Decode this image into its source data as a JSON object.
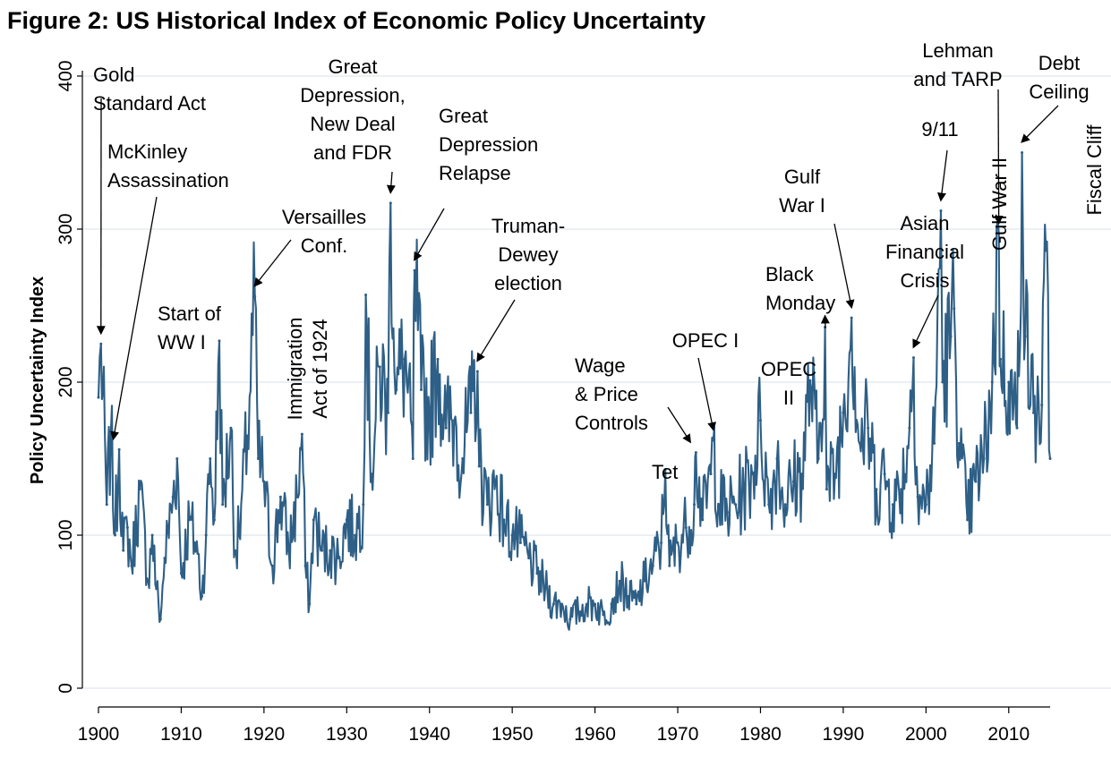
{
  "chart_data": {
    "type": "line",
    "title": "Figure 2: US Historical Index of Economic Policy Uncertainty",
    "xlabel": "",
    "ylabel": "Policy Uncertainty Index",
    "xlim": [
      1900,
      2015
    ],
    "ylim": [
      0,
      400
    ],
    "x_ticks": [
      1900,
      1910,
      1920,
      1930,
      1940,
      1950,
      1960,
      1970,
      1980,
      1990,
      2000,
      2010
    ],
    "y_ticks": [
      0,
      100,
      200,
      300,
      400
    ],
    "grid": true,
    "legend": "none",
    "line_color": "#2e5f86",
    "series": [
      {
        "x": [
          1900,
          1900.3,
          1901,
          1901.5,
          1902,
          1902.5,
          1903,
          1903.5,
          1904,
          1905,
          1906,
          1906.5,
          1907,
          1907.5,
          1908,
          1909,
          1909.5,
          1910,
          1911,
          1912,
          1912.5,
          1913,
          1913.5,
          1914,
          1914.6,
          1915,
          1916,
          1916.5,
          1917,
          1918,
          1918.9,
          1919.3,
          1920,
          1921,
          1922,
          1923,
          1924,
          1924.6,
          1925,
          1925.5,
          1926,
          1927,
          1928,
          1929,
          1930,
          1931,
          1932,
          1932.3,
          1933,
          1934,
          1935,
          1935.3,
          1936,
          1937,
          1938,
          1938.2,
          1939,
          1940,
          1941,
          1942,
          1943,
          1944,
          1945,
          1945.8,
          1946,
          1947,
          1948,
          1949,
          1950,
          1951,
          1952,
          1953,
          1954,
          1955,
          1956,
          1957,
          1958,
          1959,
          1960,
          1961,
          1962,
          1963,
          1964,
          1965,
          1966,
          1967,
          1968,
          1968.5,
          1969,
          1970,
          1971,
          1972,
          1972.2,
          1973,
          1974,
          1974.3,
          1975,
          1976,
          1977,
          1978,
          1979,
          1980,
          1981,
          1982,
          1983,
          1984,
          1985,
          1986,
          1987,
          1987.8,
          1988,
          1989,
          1990,
          1991,
          1992,
          1993,
          1994,
          1995,
          1996,
          1997,
          1998,
          1998.5,
          1999,
          2000,
          2001,
          2001.8,
          2002,
          2003,
          2003.4,
          2004,
          2005,
          2006,
          2007,
          2008,
          2008.8,
          2009,
          2010,
          2011,
          2011.6,
          2012,
          2013,
          2014,
          2014.5,
          2015
        ],
        "y": [
          190,
          225,
          120,
          168,
          100,
          156,
          90,
          105,
          80,
          130,
          70,
          100,
          65,
          45,
          85,
          125,
          150,
          75,
          110,
          88,
          60,
          100,
          150,
          110,
          227,
          120,
          170,
          90,
          100,
          165,
          256,
          150,
          135,
          80,
          125,
          90,
          125,
          166,
          80,
          55,
          110,
          90,
          90,
          85,
          110,
          100,
          120,
          257,
          140,
          210,
          180,
          317,
          195,
          215,
          150,
          273,
          195,
          180,
          215,
          170,
          175,
          150,
          180,
          207,
          145,
          120,
          135,
          110,
          100,
          95,
          85,
          75,
          65,
          55,
          55,
          45,
          50,
          55,
          55,
          48,
          55,
          70,
          60,
          55,
          70,
          80,
          95,
          143,
          80,
          95,
          105,
          120,
          154,
          110,
          140,
          162,
          120,
          115,
          120,
          130,
          140,
          175,
          120,
          150,
          120,
          135,
          140,
          201,
          150,
          236,
          130,
          140,
          180,
          242,
          160,
          170,
          130,
          140,
          120,
          130,
          170,
          216,
          125,
          120,
          160,
          312,
          200,
          230,
          248,
          160,
          110,
          135,
          150,
          200,
          297,
          215,
          200,
          170,
          350,
          230,
          180,
          185,
          286,
          150
        ]
      }
    ],
    "annotations": [
      {
        "lines": [
          "Gold",
          "Standard Act"
        ],
        "x": 1900.3,
        "y": 225
      },
      {
        "lines": [
          "McKinley",
          "Assassination"
        ],
        "x": 1901.8,
        "y": 156
      },
      {
        "lines": [
          "Start of",
          "WW I"
        ],
        "x": 1914.6,
        "y": 227
      },
      {
        "lines": [
          "Versailles",
          "Conf."
        ],
        "x": 1918.9,
        "y": 256
      },
      {
        "lines": [
          "Immigration",
          "Act of 1924"
        ],
        "x": 1924.6,
        "y": 166
      },
      {
        "lines": [
          "Great",
          "Depression,",
          "New Deal",
          "and FDR"
        ],
        "x": 1935.3,
        "y": 317
      },
      {
        "lines": [
          "Great",
          "Depression",
          "Relapse"
        ],
        "x": 1938.2,
        "y": 273
      },
      {
        "lines": [
          "Truman-",
          "Dewey",
          "election"
        ],
        "x": 1945.8,
        "y": 207
      },
      {
        "lines": [
          "Wage",
          "& Price",
          "Controls"
        ],
        "x": 1971.5,
        "y": 154
      },
      {
        "lines": [
          "Tet"
        ],
        "x": 1968.5,
        "y": 143
      },
      {
        "lines": [
          "OPEC I"
        ],
        "x": 1974.3,
        "y": 162
      },
      {
        "lines": [
          "OPEC",
          "II"
        ],
        "x": 1979,
        "y": 175
      },
      {
        "lines": [
          "Black",
          "Monday"
        ],
        "x": 1987.8,
        "y": 236
      },
      {
        "lines": [
          "Gulf",
          "War I"
        ],
        "x": 1991,
        "y": 242
      },
      {
        "lines": [
          "Asian",
          "Financial",
          "Crisis"
        ],
        "x": 1998.5,
        "y": 216
      },
      {
        "lines": [
          "9/11"
        ],
        "x": 2001.8,
        "y": 312
      },
      {
        "lines": [
          "Gulf War II"
        ],
        "x": 2003.4,
        "y": 248
      },
      {
        "lines": [
          "Lehman",
          "and TARP"
        ],
        "x": 2008.8,
        "y": 297
      },
      {
        "lines": [
          "Debt",
          "Ceiling"
        ],
        "x": 2011.6,
        "y": 350
      },
      {
        "lines": [
          "Fiscal Cliff"
        ],
        "x": 2014.5,
        "y": 286
      }
    ]
  }
}
